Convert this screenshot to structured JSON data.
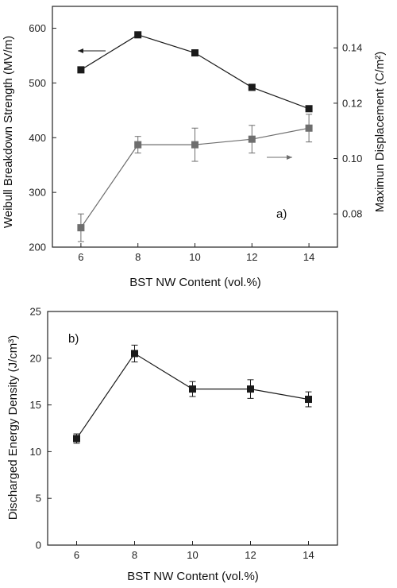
{
  "chart_data": [
    {
      "type": "line",
      "panel_label": "a)",
      "x": [
        6,
        8,
        10,
        12,
        14
      ],
      "xlabel": "BST NW Content (vol.%)",
      "xlim": [
        5,
        15
      ],
      "xticks": [
        6,
        8,
        10,
        12,
        14
      ],
      "grid": false,
      "series": [
        {
          "axis": "left",
          "values": [
            524,
            588,
            555,
            492,
            453
          ],
          "color": "#1a1a1a",
          "marker": "square",
          "arrow": "left"
        },
        {
          "axis": "right",
          "values": [
            0.075,
            0.105,
            0.105,
            0.107,
            0.111
          ],
          "errors": [
            0.005,
            0.003,
            0.006,
            0.005,
            0.005
          ],
          "color": "#6e6e6e",
          "marker": "square",
          "arrow": "right"
        }
      ],
      "ylabel_left": "Weibull Breakdown Strength (MV/m)",
      "ylim_left": [
        200,
        640
      ],
      "yticks_left": [
        200,
        300,
        400,
        500,
        600
      ],
      "ylabel_right": "Maximun Displacement (C/m²)",
      "ylim_right": [
        0.068,
        0.155
      ],
      "yticks_right": [
        "0.08",
        "0.10",
        "0.12",
        "0.14"
      ],
      "right_axis_color": "#555555"
    },
    {
      "type": "line",
      "panel_label": "b)",
      "x": [
        6,
        8,
        10,
        12,
        14
      ],
      "xlabel": "BST NW Content (vol.%)",
      "xlim": [
        5,
        15
      ],
      "xticks": [
        6,
        8,
        10,
        12,
        14
      ],
      "grid": false,
      "series": [
        {
          "values": [
            11.4,
            20.5,
            16.7,
            16.7,
            15.6
          ],
          "errors": [
            0.5,
            0.9,
            0.8,
            1.0,
            0.8
          ],
          "color": "#1a1a1a",
          "marker": "square"
        }
      ],
      "ylabel": "Discharged Energy Density (J/cm³)",
      "ylim": [
        0,
        25
      ],
      "yticks": [
        0,
        5,
        10,
        15,
        20,
        25
      ]
    }
  ]
}
